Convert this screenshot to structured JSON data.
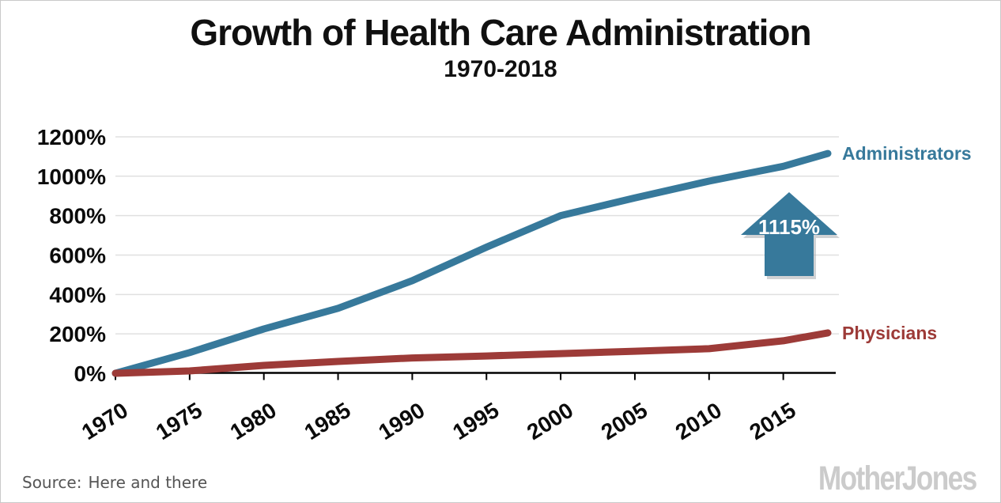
{
  "chart_data": {
    "type": "line",
    "title": "Growth of Health Care Administration",
    "subtitle": "1970-2018",
    "x": [
      1970,
      1975,
      1980,
      1985,
      1990,
      1995,
      2000,
      2005,
      2010,
      2015,
      2018
    ],
    "x_tick_labels": [
      "1970",
      "1975",
      "1980",
      "1985",
      "1990",
      "1995",
      "2000",
      "2005",
      "2010",
      "2015"
    ],
    "y_tick_labels": [
      "0%",
      "200%",
      "400%",
      "600%",
      "800%",
      "1000%",
      "1200%"
    ],
    "xlim": [
      1970,
      2018.5
    ],
    "ylim": [
      0,
      1260
    ],
    "grid": "horizontal",
    "legend_position": "line-end-labels",
    "colors": {
      "administrators": "#37799B",
      "physicians": "#9D3B38",
      "gridline": "#e0e0e0",
      "axis": "#000000",
      "arrow_shadow": "#a9adb0"
    },
    "series": [
      {
        "name": "Administrators",
        "color": "#37799B",
        "values": [
          0,
          105,
          225,
          330,
          470,
          640,
          800,
          890,
          975,
          1050,
          1115
        ]
      },
      {
        "name": "Physicians",
        "color": "#9D3B38",
        "values": [
          0,
          12,
          40,
          60,
          78,
          88,
          100,
          112,
          125,
          165,
          205
        ]
      }
    ],
    "annotation": {
      "shape": "block-up-arrow",
      "text": "1115%",
      "color": "#37799B",
      "text_color": "#ffffff"
    }
  },
  "footer": {
    "source_label": "Source:",
    "source_text": "Here and there",
    "logo": "Mother Jones"
  }
}
